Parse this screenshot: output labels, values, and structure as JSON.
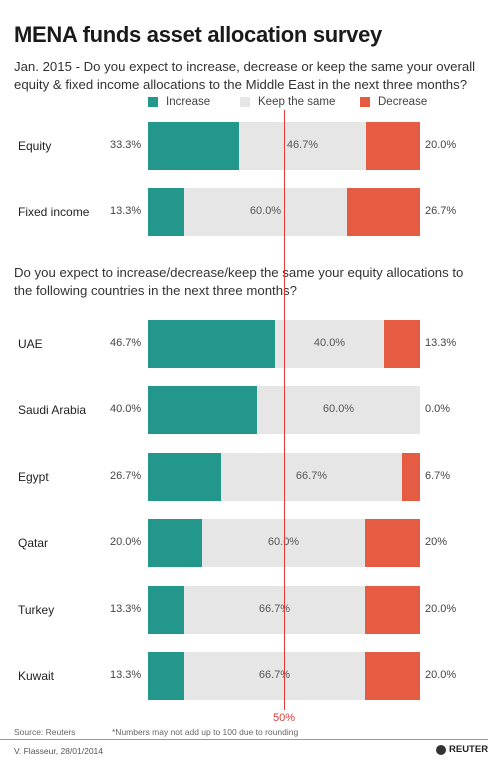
{
  "title": "MENA funds asset allocation survey",
  "question1": "Jan. 2015 -  Do you expect to increase, decrease or keep the same your overall equity & fixed income allocations to the Middle East in the next three months?",
  "question2": "Do you expect to increase/decrease/keep the same your equity allocations to the following countries in the next three months?",
  "legend": [
    {
      "label": "Increase",
      "color": "#24978d"
    },
    {
      "label": "Keep the same",
      "color": "#e6e6e6"
    },
    {
      "label": "Decrease",
      "color": "#e65c43"
    }
  ],
  "midline_label": "50%",
  "source": "Source: Reuters",
  "note": "*Numbers may not add up to 100 due to rounding",
  "credit": "V. Flasseur, 28/01/2014",
  "logo": "REUTERS",
  "chart_data": {
    "type": "bar",
    "orientation": "horizontal-stacked-100",
    "series_names": [
      "Increase",
      "Keep the same",
      "Decrease"
    ],
    "xlim": [
      0,
      100
    ],
    "reference_line": 50,
    "groups": [
      {
        "rows": [
          {
            "label": "Equity",
            "values": [
              33.3,
              46.7,
              20.0
            ],
            "labels": [
              "33.3%",
              "46.7%",
              "20.0%"
            ]
          },
          {
            "label": "Fixed income",
            "values": [
              13.3,
              60.0,
              26.7
            ],
            "labels": [
              "13.3%",
              "60.0%",
              "26.7%"
            ]
          }
        ]
      },
      {
        "rows": [
          {
            "label": "UAE",
            "values": [
              46.7,
              40.0,
              13.3
            ],
            "labels": [
              "46.7%",
              "40.0%",
              "13.3%"
            ]
          },
          {
            "label": "Saudi Arabia",
            "values": [
              40.0,
              60.0,
              0.0
            ],
            "labels": [
              "40.0%",
              "60.0%",
              "0.0%"
            ]
          },
          {
            "label": "Egypt",
            "values": [
              26.7,
              66.7,
              6.7
            ],
            "labels": [
              "26.7%",
              "66.7%",
              "6.7%"
            ]
          },
          {
            "label": "Qatar",
            "values": [
              20.0,
              60.0,
              20.0
            ],
            "labels": [
              "20.0%",
              "60.0%",
              "20%"
            ]
          },
          {
            "label": "Turkey",
            "values": [
              13.3,
              66.7,
              20.0
            ],
            "labels": [
              "13.3%",
              "66.7%",
              "20.0%"
            ]
          },
          {
            "label": "Kuwait",
            "values": [
              13.3,
              66.7,
              20.0
            ],
            "labels": [
              "13.3%",
              "66.7%",
              "20.0%"
            ]
          }
        ]
      }
    ]
  }
}
